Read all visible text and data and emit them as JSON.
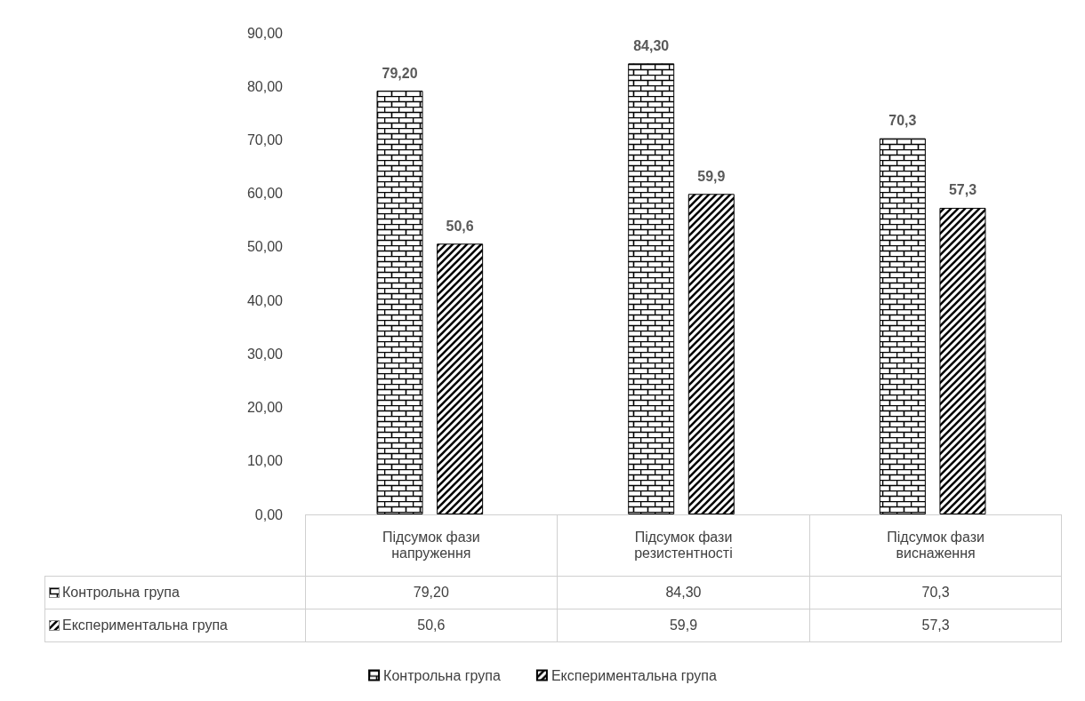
{
  "chart_data": {
    "type": "bar",
    "categories": [
      "Підсумок фази напруження",
      "Підсумок фази резистентності",
      "Підсумок фази виснаження"
    ],
    "series": [
      {
        "name": "Контрольна група",
        "color": "#000000",
        "values": [
          79.2,
          84.3,
          70.3
        ],
        "value_labels": [
          "79,20",
          "84,30",
          "70,3"
        ]
      },
      {
        "name": "Експериментальна група",
        "color": "#000000",
        "values": [
          50.6,
          59.9,
          57.3
        ],
        "value_labels": [
          "50,6",
          "59,9",
          "57,3"
        ]
      }
    ],
    "ylim": [
      0,
      90
    ],
    "yticks": [
      {
        "value": 0,
        "label": "0,00"
      },
      {
        "value": 10,
        "label": "10,00"
      },
      {
        "value": 20,
        "label": "20,00"
      },
      {
        "value": 30,
        "label": "30,00"
      },
      {
        "value": 40,
        "label": "40,00"
      },
      {
        "value": 50,
        "label": "50,00"
      },
      {
        "value": 60,
        "label": "60,00"
      },
      {
        "value": 70,
        "label": "70,00"
      },
      {
        "value": 80,
        "label": "80,00"
      },
      {
        "value": 90,
        "label": "90,00"
      }
    ],
    "grid": false,
    "legend": "bottom"
  }
}
